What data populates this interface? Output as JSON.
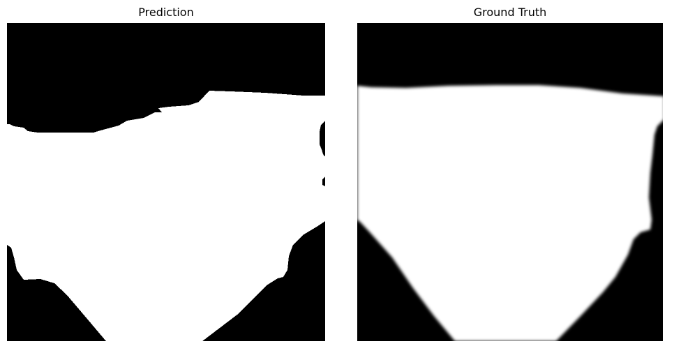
{
  "panels": [
    {
      "title": "Prediction",
      "image_kind": "binary segmentation mask",
      "colors": {
        "foreground": "#ffffff",
        "background": "#000000"
      }
    },
    {
      "title": "Ground Truth",
      "image_kind": "soft segmentation mask",
      "colors": {
        "foreground": "#ffffff",
        "background": "#000000"
      }
    }
  ]
}
